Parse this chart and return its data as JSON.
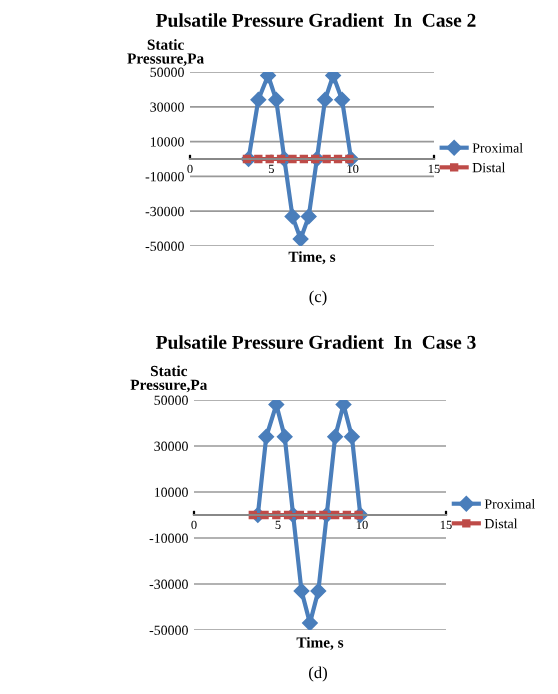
{
  "chart_data": [
    {
      "type": "line",
      "title": "Pulsatile Pressure Gradient  In  Case 2",
      "xlabel": "Time, s",
      "ylabel": "Static\nPressure,Pa",
      "annotations": [
        "(c)"
      ],
      "xlim": [
        0,
        15
      ],
      "xticks": [
        0,
        5,
        10,
        15
      ],
      "ylim": [
        -50000,
        50000
      ],
      "yticks": [
        -50000,
        -30000,
        -10000,
        10000,
        30000,
        50000
      ],
      "grid": "y",
      "legend": "right",
      "series": [
        {
          "name": "Proximal",
          "color": "#4a7ebb",
          "marker": "diamond",
          "x": [
            3.6,
            4.2,
            4.8,
            5.3,
            5.8,
            6.3,
            6.8,
            7.3,
            7.8,
            8.3,
            8.8,
            9.35,
            9.9
          ],
          "values": [
            0,
            34000,
            48000,
            34000,
            0,
            -33000,
            -46000,
            -33000,
            0,
            34000,
            48000,
            34000,
            0
          ]
        },
        {
          "name": "Distal",
          "color": "#be4b48",
          "marker": "square",
          "x": [
            3.5,
            4.2,
            4.9,
            5.6,
            6.3,
            7.0,
            7.7,
            8.4,
            9.1,
            9.8
          ],
          "values": [
            0,
            0,
            0,
            0,
            0,
            0,
            0,
            0,
            0,
            0
          ]
        }
      ]
    },
    {
      "type": "line",
      "title": "Pulsatile Pressure Gradient  In  Case 3",
      "xlabel": "Time, s",
      "ylabel": "Static\nPressure,Pa",
      "annotations": [
        "(d)"
      ],
      "xlim": [
        0,
        15
      ],
      "xticks": [
        0,
        5,
        10,
        15
      ],
      "ylim": [
        -50000,
        50000
      ],
      "yticks": [
        -50000,
        -30000,
        -10000,
        10000,
        30000,
        50000
      ],
      "grid": "y",
      "legend": "right",
      "series": [
        {
          "name": "Proximal",
          "color": "#4a7ebb",
          "marker": "diamond",
          "x": [
            3.8,
            4.3,
            4.9,
            5.4,
            5.9,
            6.4,
            6.9,
            7.4,
            7.9,
            8.4,
            8.9,
            9.4,
            9.9
          ],
          "values": [
            0,
            34000,
            48000,
            34000,
            0,
            -33000,
            -47000,
            -33000,
            0,
            34000,
            48000,
            34000,
            0
          ]
        },
        {
          "name": "Distal",
          "color": "#be4b48",
          "marker": "square",
          "x": [
            3.5,
            4.2,
            4.9,
            5.6,
            6.3,
            7.0,
            7.7,
            8.4,
            9.1,
            9.8
          ],
          "values": [
            0,
            0,
            0,
            0,
            0,
            0,
            0,
            0,
            0,
            0
          ]
        }
      ]
    }
  ]
}
